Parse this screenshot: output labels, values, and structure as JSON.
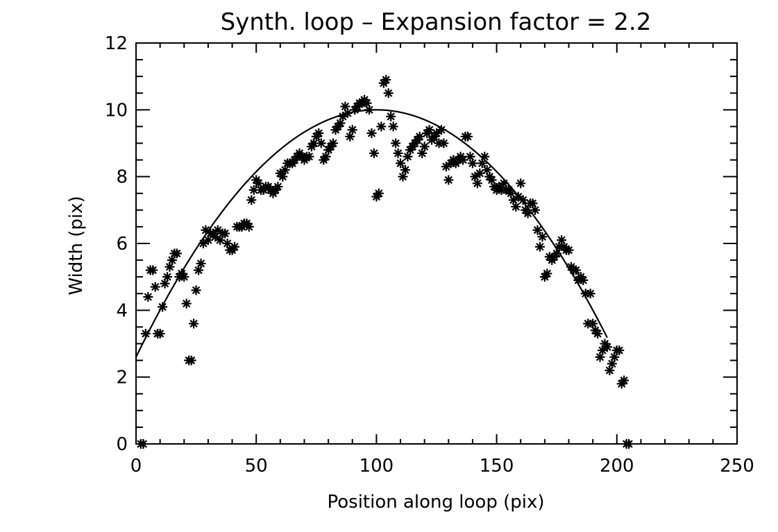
{
  "chart_data": {
    "type": "scatter",
    "title": "Synth. loop – Expansion factor = 2.2",
    "xlabel": "Position along loop (pix)",
    "ylabel": "Width (pix)",
    "xlim": [
      0,
      250
    ],
    "ylim": [
      0,
      12
    ],
    "x_ticks": [
      0,
      50,
      100,
      150,
      200,
      250
    ],
    "y_ticks": [
      0,
      2,
      4,
      6,
      8,
      10,
      12
    ],
    "x_tick_labels": [
      "0",
      "50",
      "100",
      "150",
      "200",
      "250"
    ],
    "y_tick_labels": [
      "0",
      "2",
      "4",
      "6",
      "8",
      "10",
      "12"
    ],
    "x_minor_step": 10,
    "y_minor_step": 0.5,
    "marker": "asterisk",
    "color": "#000000",
    "series": [
      {
        "type": "scatter",
        "points": [
          [
            2,
            0
          ],
          [
            3,
            0
          ],
          [
            4,
            3.3
          ],
          [
            5,
            4.4
          ],
          [
            6,
            5.2
          ],
          [
            7,
            5.2
          ],
          [
            8,
            4.7
          ],
          [
            9,
            3.3
          ],
          [
            10,
            3.3
          ],
          [
            11,
            4.1
          ],
          [
            12,
            4.8
          ],
          [
            13,
            5.0
          ],
          [
            14,
            5.3
          ],
          [
            15,
            5.5
          ],
          [
            16,
            5.7
          ],
          [
            17,
            5.7
          ],
          [
            18,
            5.0
          ],
          [
            19,
            5.1
          ],
          [
            20,
            5.0
          ],
          [
            21,
            4.2
          ],
          [
            22,
            2.5
          ],
          [
            23,
            2.5
          ],
          [
            24,
            3.6
          ],
          [
            25,
            4.6
          ],
          [
            26,
            5.2
          ],
          [
            27,
            5.4
          ],
          [
            28,
            6.0
          ],
          [
            29,
            6.4
          ],
          [
            30,
            6.1
          ],
          [
            31,
            6.3
          ],
          [
            32,
            6.3
          ],
          [
            33,
            6.2
          ],
          [
            34,
            6.4
          ],
          [
            35,
            6.1
          ],
          [
            36,
            6.3
          ],
          [
            37,
            6.3
          ],
          [
            38,
            6.0
          ],
          [
            39,
            5.8
          ],
          [
            40,
            5.8
          ],
          [
            41,
            5.9
          ],
          [
            42,
            6.5
          ],
          [
            43,
            6.5
          ],
          [
            44,
            6.5
          ],
          [
            45,
            6.6
          ],
          [
            46,
            6.6
          ],
          [
            47,
            6.5
          ],
          [
            48,
            7.3
          ],
          [
            49,
            7.6
          ],
          [
            50,
            7.9
          ],
          [
            51,
            7.8
          ],
          [
            52,
            7.6
          ],
          [
            53,
            7.6
          ],
          [
            54,
            7.7
          ],
          [
            55,
            7.7
          ],
          [
            56,
            7.6
          ],
          [
            57,
            7.5
          ],
          [
            58,
            7.6
          ],
          [
            59,
            7.7
          ],
          [
            60,
            8.1
          ],
          [
            61,
            8.0
          ],
          [
            62,
            8.2
          ],
          [
            63,
            8.4
          ],
          [
            64,
            8.4
          ],
          [
            65,
            8.4
          ],
          [
            66,
            8.5
          ],
          [
            67,
            8.6
          ],
          [
            68,
            8.7
          ],
          [
            69,
            8.6
          ],
          [
            70,
            8.5
          ],
          [
            71,
            8.6
          ],
          [
            72,
            8.6
          ],
          [
            73,
            8.9
          ],
          [
            74,
            9.0
          ],
          [
            75,
            9.2
          ],
          [
            76,
            9.3
          ],
          [
            77,
            9.0
          ],
          [
            78,
            8.5
          ],
          [
            79,
            8.6
          ],
          [
            80,
            8.8
          ],
          [
            81,
            8.9
          ],
          [
            82,
            9.0
          ],
          [
            83,
            9.4
          ],
          [
            84,
            9.5
          ],
          [
            85,
            9.6
          ],
          [
            86,
            9.8
          ],
          [
            87,
            10.1
          ],
          [
            88,
            9.9
          ],
          [
            89,
            9.2
          ],
          [
            90,
            9.4
          ],
          [
            91,
            10.0
          ],
          [
            92,
            10.1
          ],
          [
            93,
            10.2
          ],
          [
            94,
            10.2
          ],
          [
            95,
            10.3
          ],
          [
            96,
            10.2
          ],
          [
            97,
            10.0
          ],
          [
            98,
            9.3
          ],
          [
            99,
            8.7
          ],
          [
            100,
            7.4
          ],
          [
            101,
            7.5
          ],
          [
            102,
            9.5
          ],
          [
            103,
            10.8
          ],
          [
            104,
            10.9
          ],
          [
            105,
            10.5
          ],
          [
            106,
            9.8
          ],
          [
            107,
            9.5
          ],
          [
            108,
            9.0
          ],
          [
            109,
            8.7
          ],
          [
            110,
            8.4
          ],
          [
            111,
            8.0
          ],
          [
            112,
            8.2
          ],
          [
            113,
            8.6
          ],
          [
            114,
            8.8
          ],
          [
            115,
            8.9
          ],
          [
            116,
            9.0
          ],
          [
            117,
            9.1
          ],
          [
            118,
            9.2
          ],
          [
            119,
            8.7
          ],
          [
            120,
            8.9
          ],
          [
            121,
            9.3
          ],
          [
            122,
            9.4
          ],
          [
            123,
            9.1
          ],
          [
            124,
            9.2
          ],
          [
            125,
            9.3
          ],
          [
            126,
            9.0
          ],
          [
            127,
            9.4
          ],
          [
            128,
            9.0
          ],
          [
            129,
            8.3
          ],
          [
            130,
            7.9
          ],
          [
            131,
            8.4
          ],
          [
            132,
            8.5
          ],
          [
            133,
            8.4
          ],
          [
            134,
            8.5
          ],
          [
            135,
            8.6
          ],
          [
            136,
            8.5
          ],
          [
            137,
            9.2
          ],
          [
            138,
            9.2
          ],
          [
            139,
            8.6
          ],
          [
            140,
            8.4
          ],
          [
            141,
            8.0
          ],
          [
            142,
            7.8
          ],
          [
            143,
            8.1
          ],
          [
            144,
            8.4
          ],
          [
            145,
            8.6
          ],
          [
            146,
            8.2
          ],
          [
            147,
            8.0
          ],
          [
            148,
            7.9
          ],
          [
            149,
            7.7
          ],
          [
            150,
            7.6
          ],
          [
            151,
            7.7
          ],
          [
            152,
            7.6
          ],
          [
            153,
            7.8
          ],
          [
            154,
            7.6
          ],
          [
            155,
            7.6
          ],
          [
            156,
            7.5
          ],
          [
            157,
            7.3
          ],
          [
            158,
            7.1
          ],
          [
            159,
            7.4
          ],
          [
            160,
            7.8
          ],
          [
            161,
            7.3
          ],
          [
            162,
            7.0
          ],
          [
            163,
            6.9
          ],
          [
            164,
            7.2
          ],
          [
            165,
            7.2
          ],
          [
            166,
            7.0
          ],
          [
            167,
            6.4
          ],
          [
            168,
            5.9
          ],
          [
            169,
            6.2
          ],
          [
            170,
            5.0
          ],
          [
            171,
            5.1
          ],
          [
            172,
            5.6
          ],
          [
            173,
            5.5
          ],
          [
            174,
            5.6
          ],
          [
            175,
            5.7
          ],
          [
            176,
            5.9
          ],
          [
            177,
            6.1
          ],
          [
            178,
            5.9
          ],
          [
            179,
            5.8
          ],
          [
            180,
            5.8
          ],
          [
            181,
            5.3
          ],
          [
            182,
            5.2
          ],
          [
            183,
            5.2
          ],
          [
            184,
            4.9
          ],
          [
            185,
            5.0
          ],
          [
            186,
            4.9
          ],
          [
            187,
            4.5
          ],
          [
            188,
            3.6
          ],
          [
            189,
            4.5
          ],
          [
            190,
            3.6
          ],
          [
            191,
            3.4
          ],
          [
            192,
            3.3
          ],
          [
            193,
            2.6
          ],
          [
            194,
            2.8
          ],
          [
            195,
            3.0
          ],
          [
            196,
            2.9
          ],
          [
            197,
            2.2
          ],
          [
            198,
            2.4
          ],
          [
            199,
            2.6
          ],
          [
            200,
            2.8
          ],
          [
            201,
            2.8
          ],
          [
            202,
            1.8
          ],
          [
            203,
            1.9
          ],
          [
            204,
            0
          ],
          [
            205,
            0
          ]
        ]
      },
      {
        "type": "line",
        "curve": "parabola",
        "x_start": 0,
        "x_end": 196,
        "vertex_x": 100,
        "vertex_y": 10.0,
        "y_at_start": 2.6
      }
    ]
  }
}
